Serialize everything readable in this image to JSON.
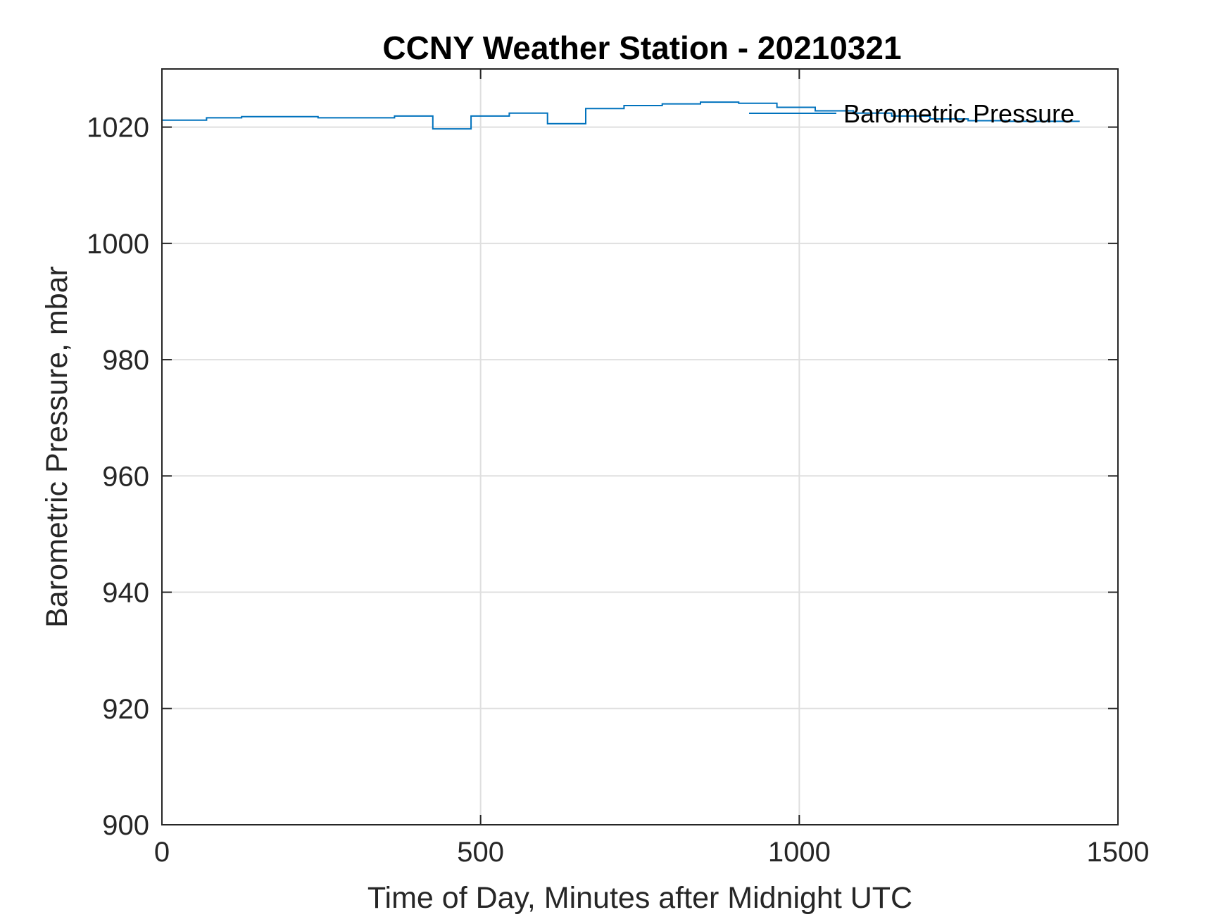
{
  "chart_data": {
    "type": "line",
    "title": "CCNY Weather Station - 20210321",
    "xlabel": "Time of Day, Minutes after Midnight UTC",
    "ylabel": "Barometric Pressure, mbar",
    "xlim": [
      0,
      1500
    ],
    "ylim": [
      900,
      1030
    ],
    "xticks": [
      0,
      500,
      1000,
      1500
    ],
    "xtick_labels": [
      "0",
      "500",
      "1000",
      "1500"
    ],
    "yticks": [
      900,
      920,
      940,
      960,
      980,
      1000,
      1020
    ],
    "ytick_labels": [
      "900",
      "920",
      "940",
      "960",
      "980",
      "1000",
      "1020"
    ],
    "grid": true,
    "legend": {
      "location": "top-right",
      "entries": [
        "Barometric Pressure"
      ]
    },
    "colors": {
      "series": "#0072BD",
      "axes": "#262626",
      "grid": "#dfdfdf"
    },
    "series": [
      {
        "name": "Barometric Pressure",
        "step": true,
        "x": [
          0,
          70,
          125,
          245,
          365,
          425,
          485,
          545,
          605,
          665,
          725,
          785,
          845,
          905,
          965,
          1025,
          1085,
          1145,
          1205,
          1265,
          1325,
          1440
        ],
        "y": [
          1021.2,
          1021.6,
          1021.8,
          1021.6,
          1021.9,
          1019.7,
          1021.9,
          1022.4,
          1020.6,
          1023.2,
          1023.7,
          1024.0,
          1024.3,
          1024.1,
          1023.4,
          1022.8,
          1022.4,
          1021.9,
          1021.4,
          1021.1,
          1021.0,
          1021.0
        ]
      }
    ]
  }
}
